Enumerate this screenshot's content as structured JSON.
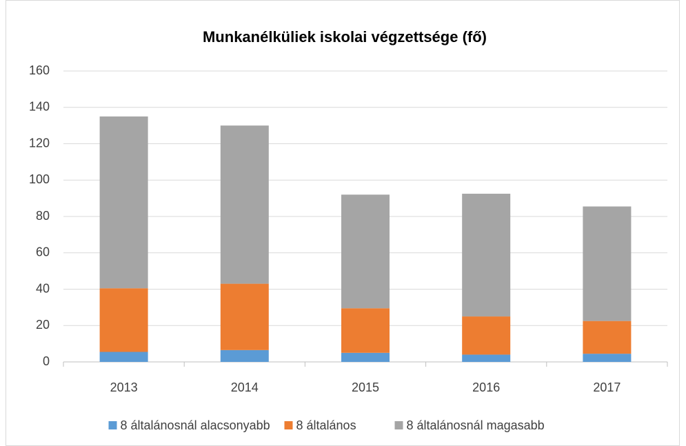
{
  "chart_data": {
    "type": "stacked_bar",
    "title": "Munkanélküliek iskolai végzettsége (fő)",
    "categories": [
      "2013",
      "2014",
      "2015",
      "2016",
      "2017"
    ],
    "series": [
      {
        "name": "8 általánosnál alacsonyabb",
        "color": "#5b9bd5",
        "values": [
          5.5,
          6.5,
          5,
          4,
          4.5
        ]
      },
      {
        "name": "8 általános",
        "color": "#ed7d31",
        "values": [
          35,
          36.5,
          24.5,
          21,
          18
        ]
      },
      {
        "name": "8 általánosnál magasabb",
        "color": "#a5a5a5",
        "values": [
          94.5,
          87,
          62.5,
          67.5,
          63
        ]
      }
    ],
    "ylim": [
      0,
      160
    ],
    "yticks": [
      0,
      20,
      40,
      60,
      80,
      100,
      120,
      140,
      160
    ],
    "grid": true,
    "legend": "bottom"
  }
}
